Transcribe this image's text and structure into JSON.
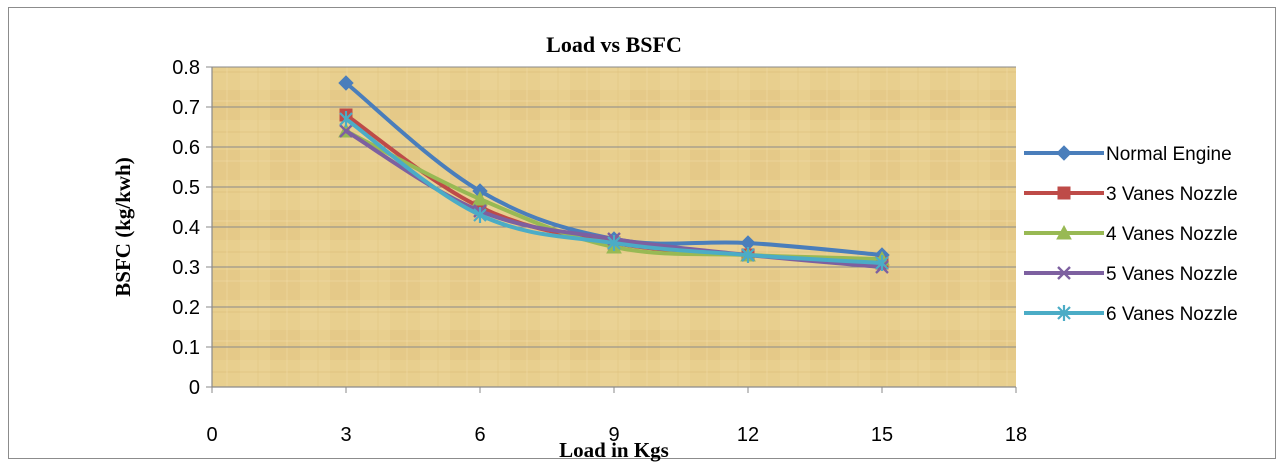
{
  "chart_data": {
    "type": "line",
    "title": "Load vs BSFC",
    "xlabel": "Load in Kgs",
    "ylabel": "BSFC  (kg/kwh)",
    "xlim": [
      0,
      18
    ],
    "ylim": [
      0,
      0.8
    ],
    "xticks": [
      "0",
      "3",
      "6",
      "9",
      "12",
      "15",
      "18"
    ],
    "yticks": [
      "0",
      "0.1",
      "0.2",
      "0.3",
      "0.4",
      "0.5",
      "0.6",
      "0.7",
      "0.8"
    ],
    "grid": "horizontal",
    "legend_position": "right",
    "x": [
      3,
      6,
      9,
      12,
      15
    ],
    "series": [
      {
        "name": "Normal Engine",
        "values": [
          0.76,
          0.49,
          0.37,
          0.36,
          0.33
        ],
        "color": "#4a7ebb",
        "marker": "diamond"
      },
      {
        "name": "3 Vanes Nozzle",
        "values": [
          0.68,
          0.45,
          0.36,
          0.33,
          0.31
        ],
        "color": "#be4b48",
        "marker": "square"
      },
      {
        "name": "4 Vanes Nozzle",
        "values": [
          0.64,
          0.47,
          0.35,
          0.33,
          0.32
        ],
        "color": "#98b954",
        "marker": "triangle"
      },
      {
        "name": "5 Vanes Nozzle",
        "values": [
          0.64,
          0.44,
          0.37,
          0.33,
          0.3
        ],
        "color": "#7d60a0",
        "marker": "x"
      },
      {
        "name": "6 Vanes Nozzle",
        "values": [
          0.67,
          0.43,
          0.36,
          0.33,
          0.31
        ],
        "color": "#4bacc6",
        "marker": "star"
      }
    ]
  }
}
